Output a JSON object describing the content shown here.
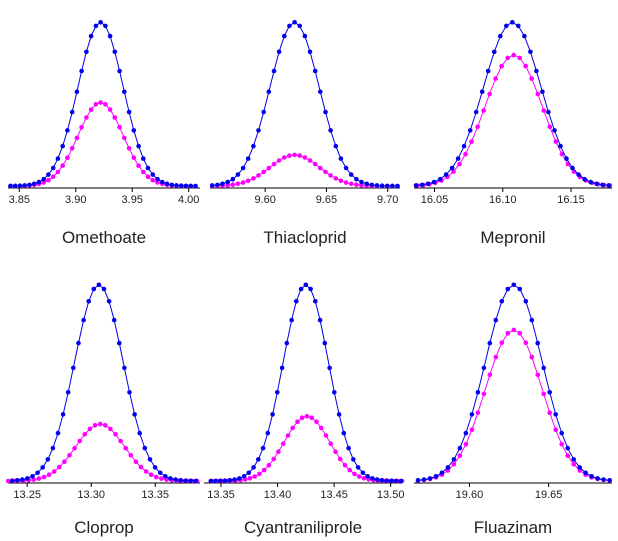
{
  "colors": {
    "upper_series": "#0000ee",
    "lower_series": "#ff00ff",
    "axis": "#000000"
  },
  "chart_data": [
    {
      "type": "line",
      "title": "Omethoate",
      "xlim": [
        3.84,
        4.01
      ],
      "ylim": [
        0,
        100
      ],
      "xticks": [
        "3.85",
        "3.90",
        "3.95",
        "4.00"
      ],
      "grid": false,
      "series": [
        {
          "color": "#0000ee",
          "peak_center": 3.922,
          "peak_width": 0.02,
          "peak_height": 100,
          "tailing": 0.0
        },
        {
          "color": "#ff00ff",
          "peak_center": 3.922,
          "peak_width": 0.02,
          "peak_height": 51,
          "tailing": 0.0
        }
      ]
    },
    {
      "type": "line",
      "title": "Thiacloprid",
      "xlim": [
        9.555,
        9.71
      ],
      "ylim": [
        0,
        100
      ],
      "xticks": [
        "9.60",
        "9.65",
        "9.70"
      ],
      "grid": false,
      "series": [
        {
          "color": "#0000ee",
          "peak_center": 9.624,
          "peak_width": 0.02,
          "peak_height": 100,
          "tailing": 0.0
        },
        {
          "color": "#ff00ff",
          "peak_center": 9.624,
          "peak_width": 0.02,
          "peak_height": 19,
          "tailing": 0.0
        }
      ]
    },
    {
      "type": "line",
      "title": "Mepronil",
      "xlim": [
        16.035,
        16.18
      ],
      "ylim": [
        0,
        100
      ],
      "xticks": [
        "16.05",
        "16.10",
        "16.15"
      ],
      "grid": false,
      "series": [
        {
          "color": "#0000ee",
          "peak_center": 16.107,
          "peak_width": 0.021,
          "peak_height": 100,
          "tailing": 0.0
        },
        {
          "color": "#ff00ff",
          "peak_center": 16.108,
          "peak_width": 0.021,
          "peak_height": 80,
          "tailing": 0.0
        }
      ]
    },
    {
      "type": "line",
      "title": "Cloprop",
      "xlim": [
        13.235,
        13.385
      ],
      "ylim": [
        0,
        100
      ],
      "xticks": [
        "13.25",
        "13.30",
        "13.35"
      ],
      "grid": false,
      "series": [
        {
          "color": "#0000ee",
          "peak_center": 13.306,
          "peak_width": 0.019,
          "peak_height": 100,
          "tailing": 0.0
        },
        {
          "color": "#ff00ff",
          "peak_center": 13.307,
          "peak_width": 0.019,
          "peak_height": 29,
          "tailing": 0.0
        }
      ]
    },
    {
      "type": "line",
      "title": "Cyantraniliprole",
      "xlim": [
        13.335,
        13.51
      ],
      "ylim": [
        0,
        100
      ],
      "xticks": [
        "13.35",
        "13.40",
        "13.45",
        "13.50"
      ],
      "grid": false,
      "series": [
        {
          "color": "#0000ee",
          "peak_center": 13.425,
          "peak_width": 0.02,
          "peak_height": 100,
          "tailing": 0.0
        },
        {
          "color": "#ff00ff",
          "peak_center": 13.426,
          "peak_width": 0.02,
          "peak_height": 33,
          "tailing": 0.0
        }
      ]
    },
    {
      "type": "line",
      "title": "Fluazinam",
      "xlim": [
        19.565,
        19.69
      ],
      "ylim": [
        0,
        100
      ],
      "xticks": [
        "19.60",
        "19.65"
      ],
      "grid": false,
      "series": [
        {
          "color": "#0000ee",
          "peak_center": 19.628,
          "peak_width": 0.018,
          "peak_height": 100,
          "tailing": 0.0
        },
        {
          "color": "#ff00ff",
          "peak_center": 19.628,
          "peak_width": 0.018,
          "peak_height": 77,
          "tailing": 0.0
        }
      ]
    }
  ]
}
